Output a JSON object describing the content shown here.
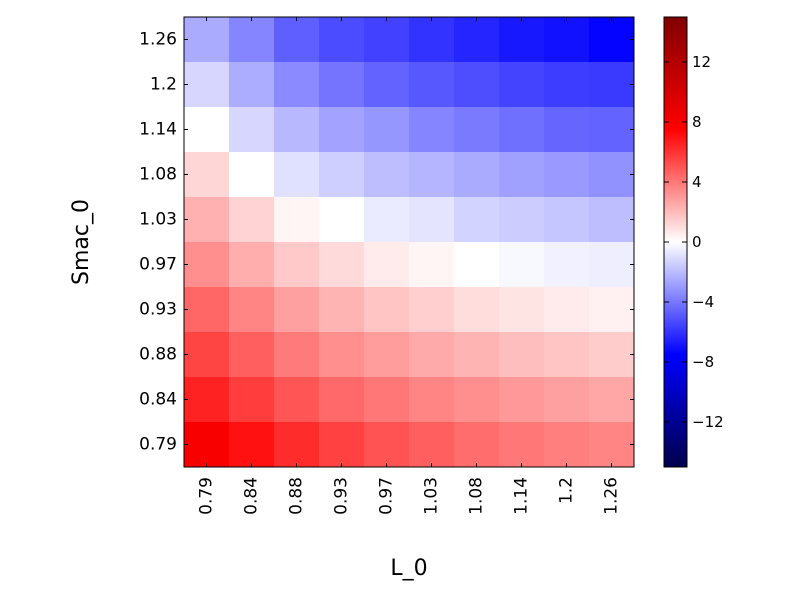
{
  "chart_data": {
    "type": "heatmap",
    "title": "",
    "xlabel": "L_0",
    "ylabel": "Smac_0",
    "x_categories": [
      "0.79",
      "0.84",
      "0.88",
      "0.93",
      "0.97",
      "1.03",
      "1.08",
      "1.14",
      "1.2",
      "1.26"
    ],
    "y_categories": [
      "1.26",
      "1.2",
      "1.14",
      "1.08",
      "1.03",
      "0.97",
      "0.93",
      "0.88",
      "0.84",
      "0.79"
    ],
    "values": [
      [
        -2.5,
        -3.6,
        -4.7,
        -5.3,
        -5.6,
        -6.0,
        -6.4,
        -6.8,
        -7.0,
        -7.4
      ],
      [
        -1.2,
        -2.4,
        -3.4,
        -4.1,
        -4.6,
        -4.9,
        -5.2,
        -5.5,
        -5.7,
        -5.8
      ],
      [
        0.0,
        -1.2,
        -2.1,
        -2.7,
        -3.1,
        -3.6,
        -3.9,
        -4.2,
        -4.5,
        -4.6
      ],
      [
        1.2,
        0.0,
        -0.9,
        -1.4,
        -1.9,
        -2.2,
        -2.5,
        -2.8,
        -3.0,
        -3.2
      ],
      [
        2.3,
        1.3,
        0.3,
        0.0,
        -0.6,
        -0.8,
        -1.3,
        -1.5,
        -1.7,
        -1.9
      ],
      [
        3.3,
        2.4,
        1.6,
        1.1,
        0.6,
        0.3,
        0.0,
        -0.2,
        -0.4,
        -0.5
      ],
      [
        4.5,
        3.6,
        2.8,
        2.2,
        1.7,
        1.4,
        1.0,
        0.8,
        0.6,
        0.4
      ],
      [
        5.5,
        4.7,
        3.9,
        3.3,
        2.9,
        2.5,
        2.2,
        1.9,
        1.7,
        1.5
      ],
      [
        6.5,
        5.7,
        5.0,
        4.4,
        4.0,
        3.6,
        3.3,
        3.0,
        2.8,
        2.6
      ],
      [
        7.9,
        7.0,
        6.2,
        5.6,
        5.1,
        4.7,
        4.3,
        4.0,
        3.8,
        3.6
      ]
    ],
    "colorbar": {
      "colormap": "seismic",
      "vmin": -15,
      "vmax": 15,
      "ticks": [
        "12",
        "8",
        "4",
        "0",
        "−4",
        "−8",
        "−12"
      ],
      "tick_values": [
        12,
        8,
        4,
        0,
        -4,
        -8,
        -12
      ]
    },
    "grid": false
  }
}
